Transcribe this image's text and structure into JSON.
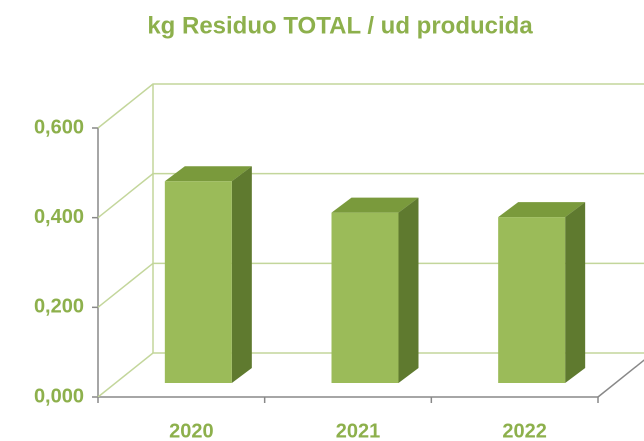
{
  "chart_data": {
    "type": "bar3d",
    "title": "kg Residuo TOTAL / ud producida",
    "categories": [
      "2020",
      "2021",
      "2022"
    ],
    "values": [
      0.45,
      0.38,
      0.37
    ],
    "color": "#9bbb59",
    "ylim": [
      0,
      0.6
    ],
    "yticks": [
      {
        "value": 0,
        "label": "0,000"
      },
      {
        "value": 0.2,
        "label": "0,200"
      },
      {
        "value": 0.4,
        "label": "0,400"
      },
      {
        "value": 0.6,
        "label": "0,600"
      }
    ],
    "grid": true
  }
}
